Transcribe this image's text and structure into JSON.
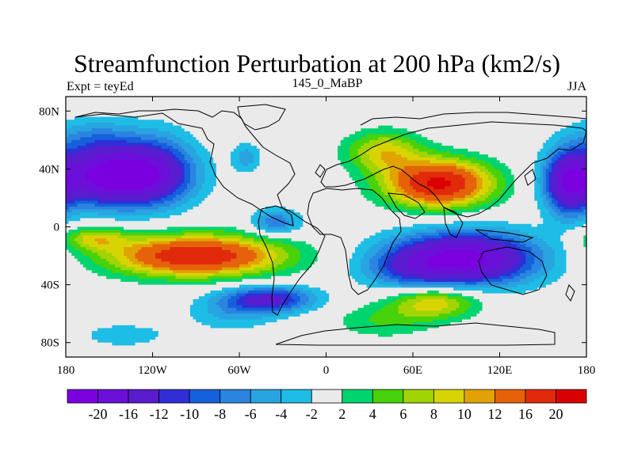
{
  "title": "Streamfunction Perturbation at 200 hPa (km2/s)",
  "subtitle_left": "Expt = teyEd",
  "subtitle_center": "145_0_MaBP",
  "subtitle_right": "JJA",
  "chart_data": {
    "type": "heatmap",
    "projection": "cylindrical equidistant",
    "field": "streamfunction perturbation",
    "x_ticks": [
      "180",
      "120W",
      "60W",
      "0",
      "60E",
      "120E",
      "180"
    ],
    "x_tick_values": [
      -180,
      -120,
      -60,
      0,
      60,
      120,
      180
    ],
    "y_ticks": [
      "80N",
      "40N",
      "0",
      "40S",
      "80S"
    ],
    "y_tick_values": [
      80,
      40,
      0,
      -40,
      -80
    ],
    "xlim": [
      -180,
      180
    ],
    "ylim": [
      -90,
      90
    ],
    "colorbar": {
      "labels": [
        "-20",
        "-16",
        "-12",
        "-10",
        "-8",
        "-6",
        "-4",
        "-2",
        "2",
        "4",
        "6",
        "8",
        "10",
        "12",
        "16",
        "20"
      ],
      "levels": [
        -20,
        -16,
        -12,
        -10,
        -8,
        -6,
        -4,
        -2,
        2,
        4,
        6,
        8,
        10,
        12,
        16,
        20
      ],
      "colors": [
        "#7b00e0",
        "#6a10d8",
        "#5a1ccf",
        "#2f2fd7",
        "#1560dc",
        "#2b84e0",
        "#28a4e0",
        "#1ebde6",
        "#eaeaea",
        "#00d46e",
        "#48d20a",
        "#a2d405",
        "#d8d404",
        "#e2a205",
        "#e5620a",
        "#e12a0c",
        "#d90000"
      ]
    },
    "centers": [
      {
        "lon": -145,
        "lat": 35,
        "value": -24,
        "rx": 42,
        "ry": 20
      },
      {
        "lon": -115,
        "lat": 42,
        "value": -6,
        "rx": 25,
        "ry": 26
      },
      {
        "lon": -160,
        "lat": 62,
        "value": -5,
        "rx": 30,
        "ry": 14
      },
      {
        "lon": 168,
        "lat": 30,
        "value": -16,
        "rx": 16,
        "ry": 22
      },
      {
        "lon": 95,
        "lat": -22,
        "value": -22,
        "rx": 50,
        "ry": 18
      },
      {
        "lon": 55,
        "lat": -30,
        "value": -5,
        "rx": 30,
        "ry": 14
      },
      {
        "lon": -40,
        "lat": -50,
        "value": -13,
        "rx": 32,
        "ry": 9
      },
      {
        "lon": -65,
        "lat": -60,
        "value": -4,
        "rx": 32,
        "ry": 12
      },
      {
        "lon": -140,
        "lat": -75,
        "value": -3,
        "rx": 36,
        "ry": 10
      },
      {
        "lon": -35,
        "lat": 3,
        "value": -8,
        "rx": 17,
        "ry": 9
      },
      {
        "lon": -55,
        "lat": 48,
        "value": -5,
        "rx": 10,
        "ry": 10
      },
      {
        "lon": 78,
        "lat": 30,
        "value": 21,
        "rx": 36,
        "ry": 16
      },
      {
        "lon": 40,
        "lat": 52,
        "value": 9,
        "rx": 26,
        "ry": 14
      },
      {
        "lon": -90,
        "lat": -20,
        "value": 20,
        "rx": 58,
        "ry": 14
      },
      {
        "lon": -160,
        "lat": -8,
        "value": 8,
        "rx": 22,
        "ry": 8
      },
      {
        "lon": 75,
        "lat": -52,
        "value": 10,
        "rx": 30,
        "ry": 11
      },
      {
        "lon": 40,
        "lat": -65,
        "value": 4,
        "rx": 35,
        "ry": 12
      }
    ]
  }
}
